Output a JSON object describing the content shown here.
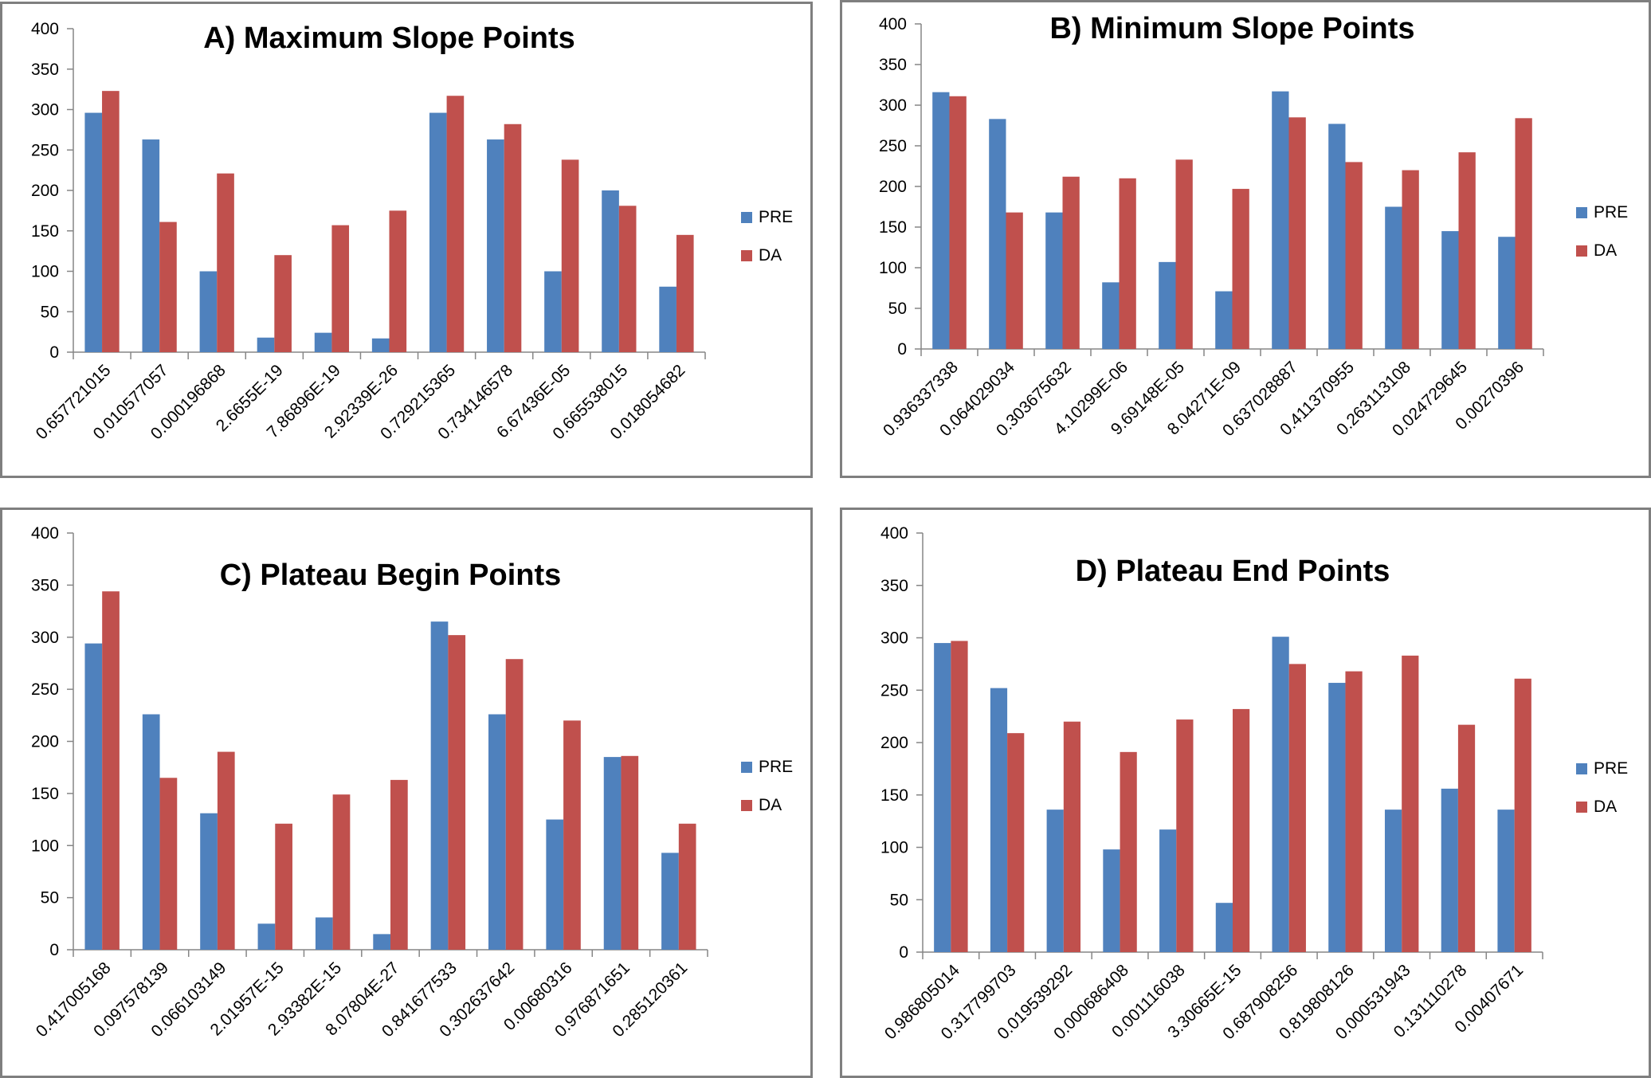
{
  "colors": {
    "pre": "#4f81bd",
    "da": "#c0504d",
    "frame": "#7f7f7f",
    "axis": "#868686"
  },
  "chart_data": [
    {
      "type": "bar",
      "title": "A) Maximum Slope Points",
      "categories": [
        "0.657721015",
        "0.010577057",
        "0.000196868",
        "2.6655E-19",
        "7.86896E-19",
        "2.92339E-26",
        "0.729215365",
        "0.734146578",
        "6.67436E-05",
        "0.665538015",
        "0.018054682"
      ],
      "series": [
        {
          "name": "PRE",
          "values": [
            296,
            263,
            100,
            18,
            24,
            17,
            296,
            263,
            100,
            200,
            81
          ]
        },
        {
          "name": "DA",
          "values": [
            323,
            161,
            221,
            120,
            157,
            175,
            317,
            282,
            238,
            181,
            145
          ]
        }
      ],
      "ylim": [
        0,
        400
      ],
      "yticks": [
        0,
        50,
        100,
        150,
        200,
        250,
        300,
        350,
        400
      ],
      "legend": "right"
    },
    {
      "type": "bar",
      "title": "B) Minimum Slope Points",
      "categories": [
        "0.936337338",
        "0.064029034",
        "0.303675632",
        "4.10299E-06",
        "9.69148E-05",
        "8.04271E-09",
        "0.637028887",
        "0.411370955",
        "0.263113108",
        "0.024729645",
        "0.00270396"
      ],
      "series": [
        {
          "name": "PRE",
          "values": [
            316,
            283,
            168,
            82,
            107,
            71,
            317,
            277,
            175,
            145,
            138
          ]
        },
        {
          "name": "DA",
          "values": [
            311,
            168,
            212,
            210,
            233,
            197,
            285,
            230,
            220,
            242,
            284
          ]
        }
      ],
      "ylim": [
        0,
        400
      ],
      "yticks": [
        0,
        50,
        100,
        150,
        200,
        250,
        300,
        350,
        400
      ],
      "legend": "right"
    },
    {
      "type": "bar",
      "title": "C) Plateau Begin Points",
      "categories": [
        "0.417005168",
        "0.097578139",
        "0.066103149",
        "2.01957E-15",
        "2.93382E-15",
        "8.07804E-27",
        "0.841677533",
        "0.302637642",
        "0.00680316",
        "0.976871651",
        "0.285120361"
      ],
      "series": [
        {
          "name": "PRE",
          "values": [
            294,
            226,
            131,
            25,
            31,
            15,
            315,
            226,
            125,
            185,
            93
          ]
        },
        {
          "name": "DA",
          "values": [
            344,
            165,
            190,
            121,
            149,
            163,
            302,
            279,
            220,
            186,
            121
          ]
        }
      ],
      "ylim": [
        0,
        400
      ],
      "yticks": [
        0,
        50,
        100,
        150,
        200,
        250,
        300,
        350,
        400
      ],
      "legend": "right"
    },
    {
      "type": "bar",
      "title": "D) Plateau End Points",
      "categories": [
        "0.986805014",
        "0.317799703",
        "0.019539292",
        "0.000686408",
        "0.001116038",
        "3.30665E-15",
        "0.687908256",
        "0.819808126",
        "0.000531943",
        "0.131110278",
        "0.00407671"
      ],
      "series": [
        {
          "name": "PRE",
          "values": [
            295,
            252,
            136,
            98,
            117,
            47,
            301,
            257,
            136,
            156,
            136
          ]
        },
        {
          "name": "DA",
          "values": [
            297,
            209,
            220,
            191,
            222,
            232,
            275,
            268,
            283,
            217,
            261
          ]
        }
      ],
      "ylim": [
        0,
        400
      ],
      "yticks": [
        0,
        50,
        100,
        150,
        200,
        250,
        300,
        350,
        400
      ],
      "legend": "right"
    }
  ]
}
